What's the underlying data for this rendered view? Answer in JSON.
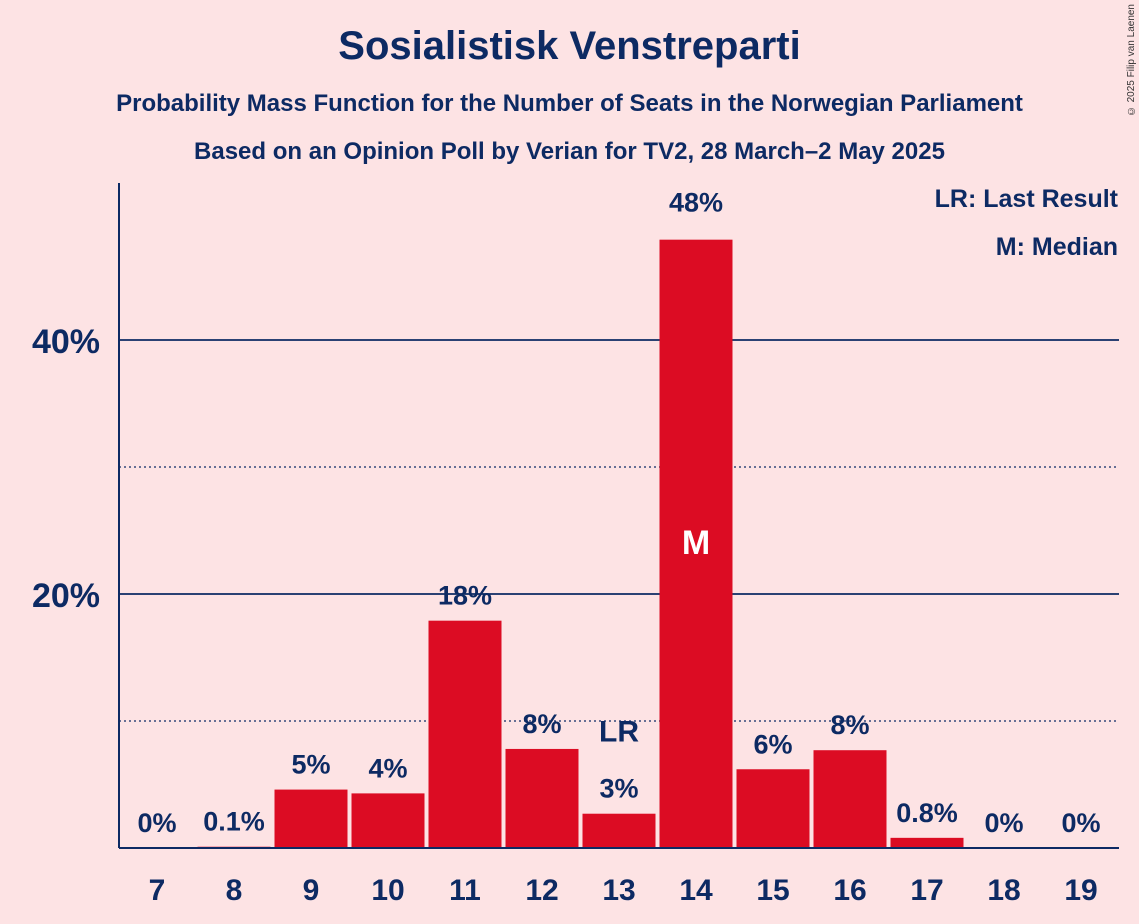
{
  "chart_data": {
    "type": "bar",
    "title": "Sosialistisk Venstreparti",
    "subtitle": "Probability Mass Function for the Number of Seats in the Norwegian Parliament",
    "subtitle2": "Based on an Opinion Poll by Verian for TV2, 28 March–2 May 2025",
    "copyright": "© 2025 Filip van Laenen",
    "legend": [
      "LR: Last Result",
      "M: Median"
    ],
    "legend_position": "top-right",
    "categories": [
      "7",
      "8",
      "9",
      "10",
      "11",
      "12",
      "13",
      "14",
      "15",
      "16",
      "17",
      "18",
      "19"
    ],
    "values": [
      0,
      0.1,
      4.6,
      4.3,
      17.9,
      7.8,
      2.7,
      47.9,
      6.2,
      7.7,
      0.8,
      0,
      0
    ],
    "value_labels": [
      "0%",
      "0.1%",
      "5%",
      "4%",
      "18%",
      "8%",
      "3%",
      "48%",
      "6%",
      "8%",
      "0.8%",
      "0%",
      "0%"
    ],
    "ytick_labels": [
      "20%",
      "40%"
    ],
    "yticks_major": [
      20,
      40
    ],
    "yticks_minor": [
      10,
      30
    ],
    "ylim": [
      0,
      52
    ],
    "last_result_category": "13",
    "last_result_label": "LR",
    "median_category": "14",
    "median_label": "M",
    "bar_color": "#dc0c23",
    "axis_color": "#0d2a63",
    "background": "#fde3e4"
  }
}
